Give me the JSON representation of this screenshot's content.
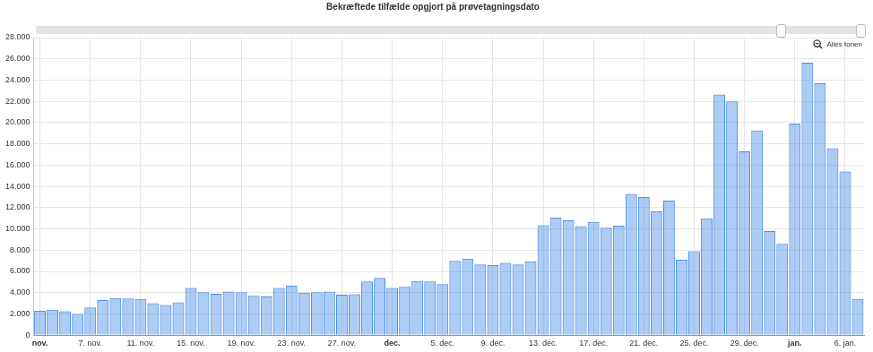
{
  "chart_data": {
    "type": "bar",
    "title": "Bekræftede tilfælde opgjort på prøvetagningsdato",
    "annotations": [
      "Alles tonen"
    ],
    "categories": [
      "nov.",
      null,
      null,
      null,
      "7. nov.",
      null,
      null,
      null,
      "11. nov.",
      null,
      null,
      null,
      "15. nov.",
      null,
      null,
      null,
      "19. nov.",
      null,
      null,
      null,
      "23. nov.",
      null,
      null,
      null,
      "27. nov.",
      null,
      null,
      null,
      "dec.",
      null,
      null,
      null,
      "5. dec.",
      null,
      null,
      null,
      "9. dec.",
      null,
      null,
      null,
      "13. dec.",
      null,
      null,
      null,
      "17. dec.",
      null,
      null,
      null,
      "21. dec.",
      null,
      null,
      null,
      "25. dec.",
      null,
      null,
      null,
      "29. dec.",
      null,
      null,
      null,
      "jan.",
      null,
      null,
      null,
      "6. jan.",
      null
    ],
    "values": [
      2300,
      2400,
      2250,
      2000,
      2600,
      3300,
      3500,
      3450,
      3400,
      3000,
      2850,
      3100,
      4450,
      4050,
      3900,
      4100,
      4050,
      3700,
      3650,
      4450,
      4650,
      4000,
      4050,
      4100,
      3800,
      3850,
      5050,
      5400,
      4450,
      4550,
      5100,
      5050,
      4800,
      7000,
      7200,
      6650,
      6600,
      6800,
      6650,
      6950,
      10350,
      11050,
      10800,
      10250,
      10650,
      10100,
      10300,
      13300,
      13000,
      11650,
      12650,
      7100,
      7900,
      11000,
      22650,
      22000,
      17300,
      19250,
      9800,
      8600,
      19900,
      25650,
      23700,
      17600,
      15400,
      3400
    ],
    "color": "#4a8de6",
    "ylim": [
      0,
      28000
    ],
    "yticks": [
      0,
      {
        "value": 2000,
        "label": "2.000"
      },
      {
        "value": 4000,
        "label": "4.000"
      },
      {
        "value": 6000,
        "label": "6.000"
      },
      {
        "value": 8000,
        "label": "8.000"
      },
      {
        "value": 10000,
        "label": "10.000"
      },
      {
        "value": 12000,
        "label": "12.000"
      },
      {
        "value": 14000,
        "label": "14.000"
      },
      {
        "value": 16000,
        "label": "16.000"
      },
      {
        "value": 18000,
        "label": "18.000"
      },
      {
        "value": 20000,
        "label": "20.000"
      },
      {
        "value": 22000,
        "label": "22.000"
      },
      {
        "value": 24000,
        "label": "24.000"
      },
      {
        "value": 26000,
        "label": "26.000"
      },
      {
        "value": 28000,
        "label": "28.000"
      }
    ],
    "grid": true
  }
}
